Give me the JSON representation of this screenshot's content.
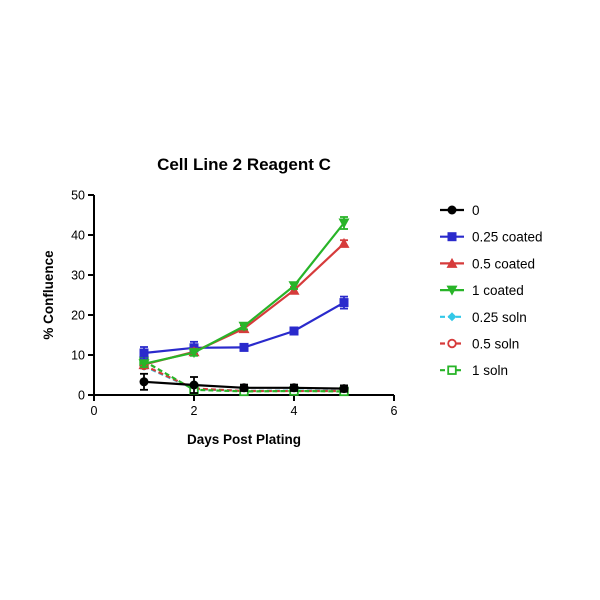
{
  "chart_data": {
    "type": "line",
    "title": "Cell Line 2 Reagent C",
    "xlabel": "Days Post Plating",
    "ylabel": "% Confluence",
    "xlim": [
      0,
      6
    ],
    "ylim": [
      0,
      50
    ],
    "xticks": [
      0,
      2,
      4,
      6
    ],
    "yticks": [
      0,
      10,
      20,
      30,
      40,
      50
    ],
    "grid": false,
    "legend_position": "right",
    "x": [
      1,
      2,
      3,
      4,
      5
    ],
    "series": [
      {
        "name": "0",
        "color": "#000000",
        "marker": "circle",
        "dashed": false,
        "values": [
          3.3,
          2.5,
          1.8,
          1.8,
          1.6
        ],
        "errors": [
          2.0,
          2.0,
          0.8,
          0.8,
          0.8
        ]
      },
      {
        "name": "0.25 coated",
        "color": "#2a2acc",
        "marker": "square",
        "dashed": false,
        "values": [
          10.5,
          11.8,
          11.9,
          16.0,
          23.1
        ],
        "errors": [
          1.5,
          1.5,
          0.8,
          0.8,
          1.5
        ]
      },
      {
        "name": "0.5 coated",
        "color": "#d63b3b",
        "marker": "triangle-up",
        "dashed": false,
        "values": [
          7.6,
          10.8,
          16.6,
          26.2,
          37.9
        ],
        "errors": [
          0.8,
          0.8,
          0.8,
          0.8,
          0.8
        ]
      },
      {
        "name": "1 coated",
        "color": "#28b428",
        "marker": "triangle-down",
        "dashed": false,
        "values": [
          7.8,
          10.6,
          17.2,
          27.3,
          43.0
        ],
        "errors": [
          0.8,
          0.8,
          0.8,
          0.8,
          1.5
        ]
      },
      {
        "name": "0.25 soln",
        "color": "#33c8e8",
        "marker": "diamond",
        "dashed": true,
        "values": [
          7.2,
          1.5,
          1.0,
          1.1,
          1.0
        ],
        "errors": [
          0.6,
          0.5,
          0.4,
          0.4,
          0.4
        ]
      },
      {
        "name": "0.5 soln",
        "color": "#d63b3b",
        "marker": "circle-open",
        "dashed": true,
        "values": [
          7.4,
          1.6,
          1.0,
          1.0,
          1.0
        ],
        "errors": [
          0.6,
          0.5,
          0.4,
          0.4,
          0.4
        ]
      },
      {
        "name": "1 soln",
        "color": "#28b428",
        "marker": "square-open",
        "dashed": true,
        "values": [
          8.5,
          1.3,
          0.9,
          1.0,
          0.9
        ],
        "errors": [
          0.6,
          0.5,
          0.4,
          0.4,
          0.4
        ]
      }
    ]
  }
}
